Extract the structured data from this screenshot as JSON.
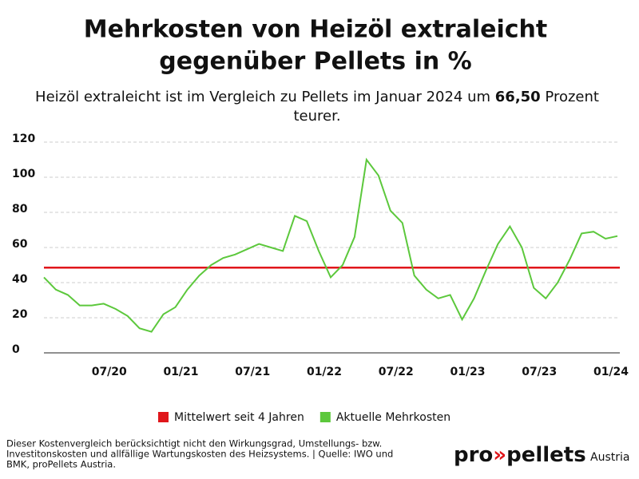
{
  "chart_data": {
    "type": "line",
    "title": [
      "Mehrkosten von Heizöl extraleicht",
      "gegenüber Pellets in %"
    ],
    "subtitle": [
      "Heizöl extraleicht ist im Vergleich zu Pellets im Januar 2024 um ",
      "66,50",
      " Prozent",
      "teurer."
    ],
    "categories": [
      null,
      null,
      null,
      null,
      null,
      null,
      "07/20",
      null,
      null,
      null,
      null,
      null,
      "01/21",
      null,
      null,
      null,
      null,
      null,
      "07/21",
      null,
      null,
      null,
      null,
      null,
      "01/22",
      null,
      null,
      null,
      null,
      null,
      "07/22",
      null,
      null,
      null,
      null,
      null,
      "01/23",
      null,
      null,
      null,
      null,
      null,
      "07/23",
      null,
      null,
      null,
      null,
      null,
      "01/24"
    ],
    "series": [
      {
        "name": "Aktuelle Mehrkosten",
        "color": "#5cc83c",
        "values": [
          43,
          36,
          33,
          27,
          27,
          28,
          25,
          21,
          14,
          12,
          22,
          26,
          36,
          44,
          50,
          54,
          56,
          59,
          62,
          60,
          58,
          78,
          75,
          58,
          43,
          50,
          66,
          110,
          101,
          81,
          74,
          44,
          36,
          31,
          33,
          19,
          31,
          47,
          62,
          72,
          60,
          37,
          31,
          40,
          53,
          68,
          69,
          65,
          66.5
        ]
      }
    ],
    "reference_line": {
      "name": "Mittelwert seit 4 Jahren",
      "color": "#e0161b",
      "value": 48.5
    },
    "ylim": [
      0,
      120
    ],
    "yticks": [
      0,
      20,
      40,
      60,
      80,
      100,
      120
    ],
    "grid": true,
    "footnote": [
      "Dieser Kostenvergleich berücksichtigt nicht den Wirkungsgrad, Umstellungs- bzw.",
      "Investitonskosten und allfällige Wartungskosten des Heizsystems. | Quelle: IWO und",
      "BMK, proPellets Austria."
    ],
    "logo": [
      "pro",
      "»",
      "pellets",
      "Austria"
    ]
  }
}
